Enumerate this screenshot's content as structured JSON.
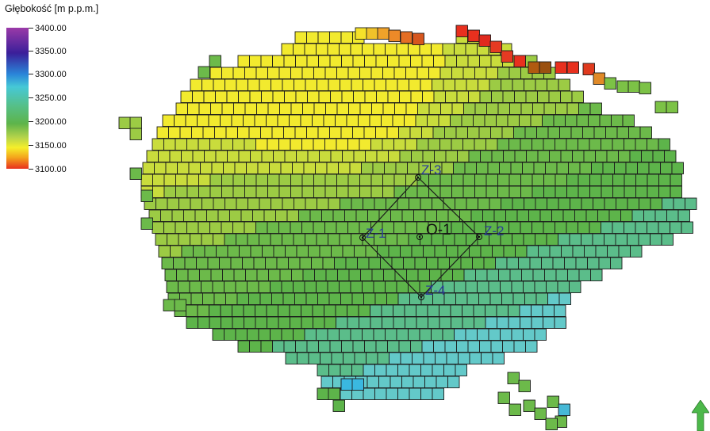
{
  "legend": {
    "title": "Głębokość [m p.p.m.]",
    "ticks": [
      "3400.00",
      "3350.00",
      "3300.00",
      "3250.00",
      "3200.00",
      "3150.00",
      "3100.00"
    ]
  },
  "wells": [
    {
      "id": "z1",
      "label": "Z-1"
    },
    {
      "id": "z2",
      "label": "Z-2"
    },
    {
      "id": "z3",
      "label": "Z-3"
    },
    {
      "id": "z4",
      "label": "Z-4"
    },
    {
      "id": "o1",
      "label": "O-1"
    }
  ],
  "colors": {
    "cell_stroke": "#1b1b1b",
    "well_label": "#2a3c9a",
    "north_arrow": "#4cb84a"
  },
  "icons": {
    "north_arrow": "north-arrow-icon"
  }
}
